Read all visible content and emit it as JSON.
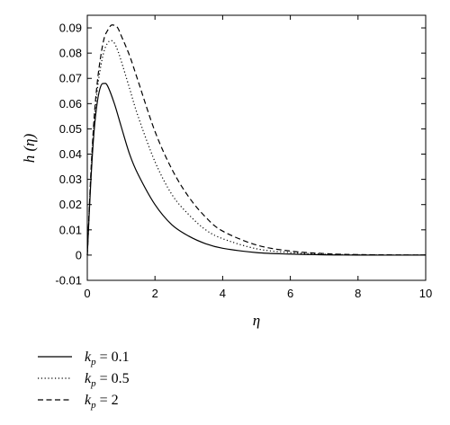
{
  "chart_data": {
    "type": "line",
    "xlabel": "η",
    "ylabel": "h (η)",
    "xlim": [
      0,
      10
    ],
    "ylim": [
      -0.01,
      0.095
    ],
    "xticks": [
      "0",
      "2",
      "4",
      "6",
      "8",
      "10"
    ],
    "yticks": [
      "-0.01",
      "0",
      "0.01",
      "0.02",
      "0.03",
      "0.04",
      "0.05",
      "0.06",
      "0.07",
      "0.08",
      "0.09"
    ],
    "grid": false,
    "legend_position": "below",
    "series": [
      {
        "name": "k_p = 0.1",
        "legend": {
          "sym": "k",
          "sub": "p",
          "rest": " = 0.1"
        },
        "style": "solid",
        "x": [
          0,
          0.1,
          0.2,
          0.3,
          0.4,
          0.5,
          0.6,
          0.8,
          1.0,
          1.25,
          1.5,
          2.0,
          2.5,
          3.0,
          3.5,
          4.0,
          5.0,
          6.0,
          7.0,
          8.0,
          10.0
        ],
        "y": [
          0,
          0.028,
          0.049,
          0.061,
          0.067,
          0.068,
          0.067,
          0.06,
          0.051,
          0.04,
          0.032,
          0.02,
          0.012,
          0.0075,
          0.0045,
          0.0027,
          0.001,
          0.0004,
          0.0001,
          0.0,
          0.0
        ]
      },
      {
        "name": "k_p = 0.5",
        "legend": {
          "sym": "k",
          "sub": "p",
          "rest": " = 0.5"
        },
        "style": "dotted",
        "x": [
          0,
          0.1,
          0.2,
          0.3,
          0.4,
          0.5,
          0.6,
          0.7,
          0.8,
          0.9,
          1.0,
          1.25,
          1.5,
          2.0,
          2.5,
          3.0,
          3.5,
          4.0,
          5.0,
          6.0,
          7.0,
          8.0,
          10.0
        ],
        "y": [
          0,
          0.03,
          0.052,
          0.066,
          0.075,
          0.081,
          0.084,
          0.085,
          0.084,
          0.081,
          0.077,
          0.066,
          0.055,
          0.037,
          0.024,
          0.016,
          0.01,
          0.0065,
          0.0025,
          0.001,
          0.0004,
          0.0001,
          0.0
        ]
      },
      {
        "name": "k_p = 2",
        "legend": {
          "sym": "k",
          "sub": "p",
          "rest": " = 2"
        },
        "style": "dashed",
        "x": [
          0,
          0.1,
          0.2,
          0.3,
          0.4,
          0.5,
          0.6,
          0.7,
          0.8,
          0.9,
          1.0,
          1.25,
          1.5,
          2.0,
          2.5,
          3.0,
          3.5,
          4.0,
          5.0,
          6.0,
          7.0,
          8.0,
          10.0
        ],
        "y": [
          0,
          0.031,
          0.054,
          0.069,
          0.079,
          0.086,
          0.089,
          0.091,
          0.091,
          0.09,
          0.087,
          0.079,
          0.069,
          0.049,
          0.034,
          0.023,
          0.015,
          0.0095,
          0.004,
          0.0016,
          0.0006,
          0.0002,
          0.0
        ]
      }
    ]
  }
}
